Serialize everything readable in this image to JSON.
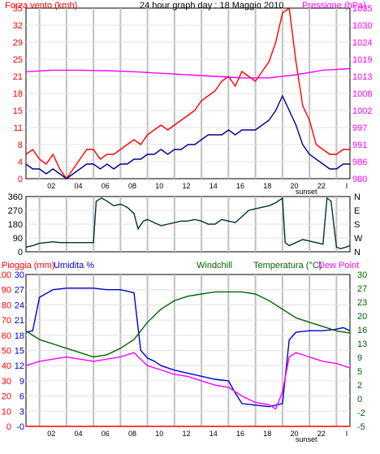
{
  "chart_data": [
    {
      "type": "line",
      "title": "24 hour graph day : 18 Maggio 2010",
      "left_axis": {
        "label": "Forza vento (kmh)",
        "ticks": [
          "0",
          "4",
          "8",
          "11",
          "15",
          "18",
          "21",
          "25",
          "29",
          "32",
          "35"
        ],
        "ylim": [
          0,
          35
        ]
      },
      "right_axis": {
        "label": "Pressione (hPa)",
        "ticks": [
          "980",
          "986",
          "991",
          "997",
          "1002",
          "1008",
          "1013",
          "1019",
          "1024",
          "1030",
          "1035"
        ],
        "ylim": [
          980,
          1035
        ]
      },
      "x_ticks": [
        "02",
        "04",
        "06",
        "08",
        "10",
        "12",
        "14",
        "16",
        "18",
        "20",
        "22"
      ],
      "x_marker": "sunset",
      "x_end_tick": "I",
      "series": [
        {
          "color": "#ff0000",
          "x": [
            0,
            0.5,
            1,
            1.5,
            2,
            2.5,
            3,
            3.5,
            4,
            4.5,
            5,
            5.5,
            6,
            6.5,
            7,
            7.5,
            8,
            8.5,
            9,
            9.5,
            10,
            10.5,
            11,
            11.5,
            12,
            12.5,
            13,
            13.5,
            14,
            14.5,
            15,
            15.5,
            16,
            16.5,
            17,
            17.5,
            18,
            18.5,
            19,
            19.5,
            20,
            20.5,
            21,
            21.5,
            22,
            22.5,
            23,
            23.5,
            24
          ],
          "values": [
            5,
            6,
            4,
            3,
            5,
            2,
            0,
            2,
            4,
            6,
            6,
            4,
            5,
            5,
            6,
            7,
            8,
            7,
            9,
            10,
            11,
            10,
            11,
            12,
            13,
            14,
            16,
            17,
            18,
            20,
            21,
            19,
            22,
            21,
            20,
            22,
            24,
            28,
            34,
            35,
            24,
            15,
            12,
            7,
            6,
            5,
            5,
            6,
            6
          ]
        },
        {
          "color": "#00008b",
          "x": [
            0,
            0.5,
            1,
            1.5,
            2,
            2.5,
            3,
            3.5,
            4,
            4.5,
            5,
            5.5,
            6,
            6.5,
            7,
            7.5,
            8,
            8.5,
            9,
            9.5,
            10,
            10.5,
            11,
            11.5,
            12,
            12.5,
            13,
            13.5,
            14,
            14.5,
            15,
            15.5,
            16,
            16.5,
            17,
            17.5,
            18,
            18.5,
            19,
            19.5,
            20,
            20.5,
            21,
            21.5,
            22,
            22.5,
            23,
            23.5,
            24
          ],
          "values": [
            3,
            2,
            2,
            1,
            2,
            1,
            0,
            1,
            2,
            3,
            3,
            2,
            3,
            2,
            3,
            3,
            4,
            4,
            5,
            5,
            6,
            5,
            6,
            6,
            7,
            7,
            8,
            9,
            9,
            9,
            10,
            9,
            10,
            10,
            10,
            11,
            12,
            14,
            17,
            14,
            11,
            7,
            5,
            4,
            3,
            2,
            2,
            3,
            3
          ]
        },
        {
          "name": "Pressione",
          "color": "#ff00ff",
          "axis": "right",
          "x": [
            0,
            2,
            4,
            6,
            8,
            10,
            12,
            14,
            16,
            18,
            20,
            22,
            24
          ],
          "values": [
            1014.5,
            1015,
            1015,
            1014.8,
            1014.5,
            1014,
            1013.5,
            1013,
            1012.5,
            1012.5,
            1013.5,
            1015,
            1015.5
          ]
        }
      ]
    },
    {
      "type": "line",
      "left_axis": {
        "ticks": [
          "0",
          "90",
          "180",
          "270",
          "360"
        ],
        "ylim": [
          0,
          360
        ]
      },
      "right_axis": {
        "ticks": [
          "N",
          "W",
          "S",
          "E",
          "N"
        ]
      },
      "series": [
        {
          "color": "#003333",
          "x": [
            0,
            0.5,
            1,
            1.5,
            2,
            2.5,
            3,
            3.5,
            4,
            4.5,
            5,
            5.2,
            5.6,
            6,
            6.5,
            7,
            7.5,
            8,
            8.3,
            8.7,
            9,
            9.5,
            10,
            10.5,
            11,
            11.5,
            12,
            12.5,
            13,
            13.5,
            14,
            14.5,
            15,
            15.5,
            16,
            16.5,
            17,
            17.5,
            18,
            18.5,
            19,
            19.2,
            19.5,
            20,
            20.5,
            21,
            21.5,
            22,
            22.3,
            22.6,
            23,
            23.3,
            23.7,
            24
          ],
          "values": [
            30,
            40,
            55,
            60,
            65,
            60,
            60,
            60,
            60,
            60,
            60,
            330,
            350,
            330,
            300,
            310,
            290,
            250,
            150,
            200,
            210,
            190,
            170,
            180,
            190,
            200,
            200,
            210,
            200,
            180,
            180,
            210,
            200,
            190,
            230,
            270,
            280,
            290,
            300,
            320,
            350,
            60,
            40,
            60,
            80,
            70,
            60,
            50,
            350,
            330,
            30,
            20,
            30,
            40
          ]
        }
      ]
    },
    {
      "type": "line",
      "left_axis": {
        "label": "Pioggia (mm)",
        "ticks": [
          "0",
          "10",
          "20",
          "30",
          "40",
          "50",
          "60",
          "70",
          "80",
          "90",
          "100"
        ],
        "ylim": [
          0,
          100
        ]
      },
      "left_axis_2": {
        "label": "Umidita %",
        "ticks": [
          "-0",
          "3",
          "6",
          "9",
          "12",
          "15",
          "18",
          "21",
          "24",
          "27",
          "30"
        ]
      },
      "right_axis": {
        "label": "Temperatura (°C)",
        "ticks": [
          "-5",
          "-2",
          "0",
          "2",
          "5",
          "9",
          "13",
          "16",
          "20",
          "23",
          "27",
          "30"
        ],
        "ylim": [
          -5,
          30
        ]
      },
      "extra_labels": [
        "Windchill",
        "Dew Point"
      ],
      "x_ticks": [
        "02",
        "04",
        "06",
        "08",
        "10",
        "12",
        "14",
        "16",
        "18",
        "20",
        "22"
      ],
      "x_marker": "sunset",
      "x_end_tick": "I",
      "series": [
        {
          "name": "Umidita %",
          "color": "#0000cd",
          "x": [
            0,
            0.5,
            1,
            2,
            3,
            4,
            5,
            6,
            7,
            8,
            8.5,
            9,
            9.5,
            10,
            11,
            12,
            13,
            14,
            15,
            15.5,
            16,
            17,
            18,
            18.5,
            19,
            19.5,
            20,
            21,
            22,
            23,
            23.5,
            24
          ],
          "values": [
            62,
            63,
            85,
            90,
            91,
            91,
            91,
            90,
            90,
            88,
            50,
            45,
            43,
            40,
            37,
            35,
            33,
            31,
            30,
            22,
            15,
            14,
            13,
            14,
            15,
            57,
            62,
            63,
            63,
            64,
            65,
            63
          ]
        },
        {
          "name": "Temperatura (°C)",
          "color": "#006400",
          "axis": "right",
          "x": [
            0,
            1,
            2,
            3,
            4,
            5,
            6,
            7,
            8,
            9,
            10,
            11,
            12,
            13,
            14,
            15,
            16,
            17,
            18,
            19,
            20,
            21,
            22,
            23,
            24
          ],
          "values": [
            17,
            15,
            14,
            13,
            12,
            11,
            11.5,
            13,
            15,
            19,
            22,
            24,
            25,
            25.5,
            26,
            26,
            26,
            25.5,
            24,
            22,
            20,
            19,
            18,
            17,
            16.5
          ]
        },
        {
          "name": "Dew Point",
          "color": "#ff00ff",
          "axis": "right",
          "x": [
            0,
            1,
            2,
            3,
            4,
            5,
            6,
            7,
            8,
            9,
            10,
            11,
            12,
            13,
            14,
            15,
            16,
            17,
            18,
            18.5,
            19,
            19.5,
            20,
            21,
            22,
            23,
            24
          ],
          "values": [
            9,
            10,
            10.5,
            11,
            10.5,
            10,
            10.5,
            11,
            12,
            9,
            8,
            7,
            6.5,
            5.5,
            4.5,
            4,
            2,
            0.5,
            0,
            -1,
            3,
            11,
            12,
            11,
            10,
            9.5,
            8.5
          ]
        },
        {
          "name": "Pioggia (mm)",
          "color": "#ff0000",
          "x": [
            0,
            24
          ],
          "values": [
            0,
            0
          ]
        }
      ]
    }
  ]
}
